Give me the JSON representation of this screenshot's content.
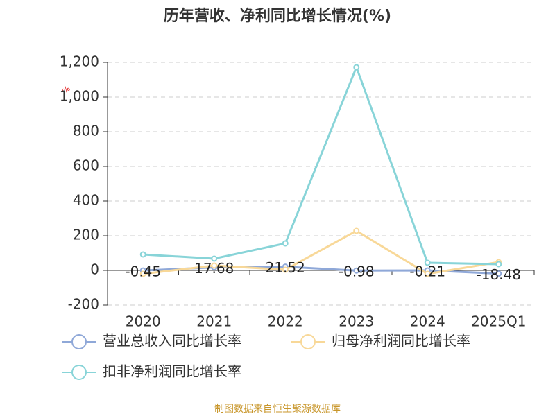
{
  "chart_data": {
    "type": "line",
    "title": "历年营收、净利同比增长情况(%)",
    "y_label": "%",
    "source": "制图数据来自恒生聚源数据库",
    "categories": [
      "2020",
      "2021",
      "2022",
      "2023",
      "2024",
      "2025Q1"
    ],
    "series": [
      {
        "name": "营业总收入同比增长率",
        "color": "#8fa8d8",
        "values": [
          -0.45,
          17.68,
          21.52,
          -0.98,
          -0.21,
          -18.48
        ]
      },
      {
        "name": "归母净利润同比增长率",
        "color": "#f8d898",
        "values": [
          -20,
          28,
          4,
          228,
          -20,
          48
        ]
      },
      {
        "name": "扣非净利润同比增长率",
        "color": "#88d4d8",
        "values": [
          92,
          68,
          156,
          1172,
          44,
          36
        ]
      }
    ],
    "ylim": [
      -200,
      1200
    ],
    "yticks": [
      -200,
      0,
      200,
      400,
      600,
      800,
      {
        "value": 1000,
        "label": "1,000"
      },
      {
        "value": 1200,
        "label": "1,200"
      }
    ],
    "grid": true
  }
}
